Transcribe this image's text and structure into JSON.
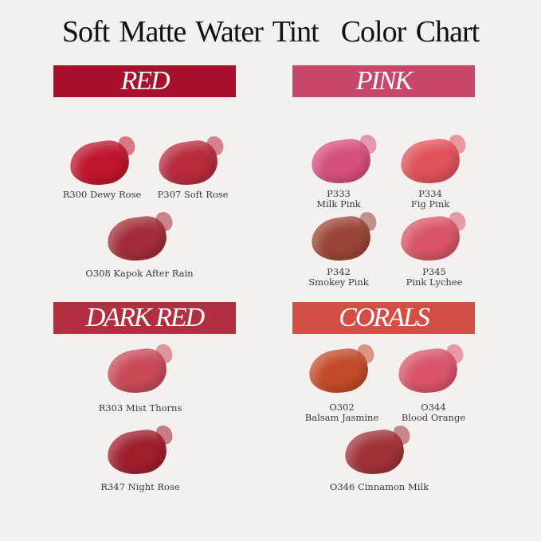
{
  "title": {
    "part1": "Soft Matte Water Tint",
    "part2": "Color Chart"
  },
  "categories": {
    "red": {
      "label": "RED",
      "color": "#a8102c"
    },
    "pink": {
      "label": "PINK",
      "color": "#c9466b"
    },
    "dark_red": {
      "label": "DARK RED",
      "color": "#b12f3f"
    },
    "corals": {
      "label": "CORALS",
      "color": "#d44e45"
    }
  },
  "shades": {
    "r300": {
      "code": "R300",
      "name": "Dewy Rose",
      "label": "R300 Dewy Rose",
      "color": "#c0152e"
    },
    "p307": {
      "code": "P307",
      "name": "Soft Rose",
      "label": "P307 Soft Rose",
      "color": "#b82a3c"
    },
    "o308": {
      "code": "O308",
      "name": "Kapok After Rain",
      "label": "O308 Kapok After Rain",
      "color": "#a22d38"
    },
    "r303": {
      "code": "R303",
      "name": "Mist Thorns",
      "label": "R303 Mist Thorns",
      "color": "#c84a57"
    },
    "r347": {
      "code": "R347",
      "name": "Night Rose",
      "label": "R347 Night Rose",
      "color": "#9e1f2c"
    },
    "p333": {
      "code": "P333",
      "name": "Milk Pink",
      "color": "#d54f7e"
    },
    "p334": {
      "code": "P334",
      "name": "Fig Pink",
      "color": "#e0525a"
    },
    "p342": {
      "code": "P342",
      "name": "Smokey Pink",
      "color": "#9a4438"
    },
    "p345": {
      "code": "P345",
      "name": "Pink Lychee",
      "color": "#d95565"
    },
    "o302": {
      "code": "O302",
      "name": "Balsam Jasmine",
      "color": "#c24a2a"
    },
    "o344": {
      "code": "O344",
      "name": "Blood Orange",
      "color": "#d9546a"
    },
    "o346": {
      "code": "O346",
      "name": "Cinnamon Milk",
      "label": "O346 Cinnamon Milk",
      "color": "#a03238"
    }
  }
}
